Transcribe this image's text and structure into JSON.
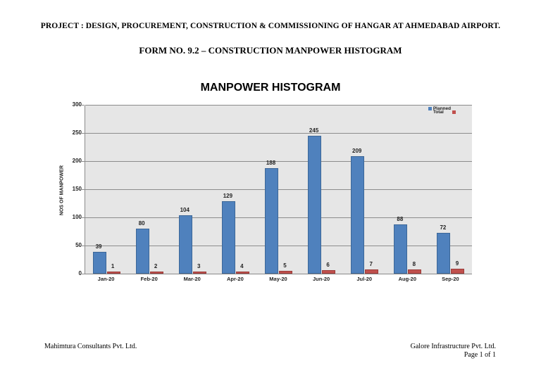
{
  "header": {
    "project_title": "PROJECT : DESIGN, PROCUREMENT, CONSTRUCTION & COMMISSIONING OF HANGAR AT AHMEDABAD AIRPORT.",
    "form_title": "FORM NO. 9.2 – CONSTRUCTION MANPOWER HISTOGRAM"
  },
  "footer": {
    "left": "Mahimtura Consultants Pvt. Ltd.",
    "right_company": "Galore Infrastructure Pvt. Ltd.",
    "page": "Page 1 of 1"
  },
  "colors": {
    "planned": "#4f81bd",
    "total": "#c0504d",
    "plot_background": "#e6e6e6"
  },
  "chart_data": {
    "type": "bar",
    "title": "MANPOWER HISTOGRAM",
    "xlabel": "",
    "ylabel": "NOS OF MANPOWER",
    "ylim": [
      0,
      300
    ],
    "yticks": [
      0,
      50,
      100,
      150,
      200,
      250,
      300
    ],
    "grid": true,
    "legend_position": "top-right",
    "categories": [
      "Jan-20",
      "Feb-20",
      "Mar-20",
      "Apr-20",
      "May-20",
      "Jun-20",
      "Jul-20",
      "Aug-20",
      "Sep-20"
    ],
    "series": [
      {
        "name": "Planned",
        "color": "#4f81bd",
        "values": [
          39,
          80,
          104,
          129,
          188,
          245,
          209,
          88,
          72
        ]
      },
      {
        "name": "Total",
        "color": "#c0504d",
        "values": [
          1,
          2,
          3,
          4,
          5,
          6,
          7,
          8,
          9
        ]
      }
    ]
  }
}
